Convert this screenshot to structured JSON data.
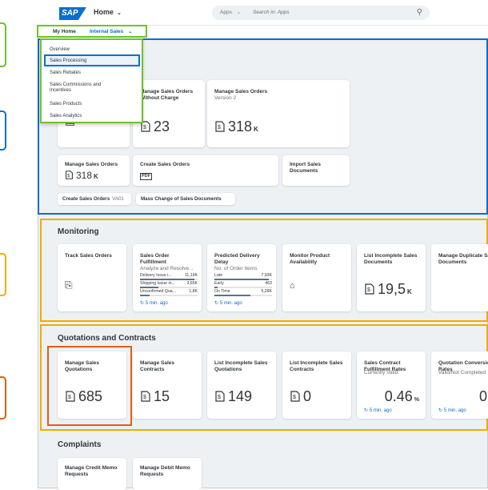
{
  "shell": {
    "logo_text": "SAP",
    "home_label": "Home",
    "search_scope": "Apps",
    "search_placeholder": "Search in: Apps"
  },
  "tabs": {
    "my_home": "My Home",
    "internal_sales": "Internal Sales"
  },
  "dropdown": {
    "items": [
      "Overview",
      "Sales Processing",
      "Sales Rebates",
      "Sales Commissions and Incentives",
      "Sales Products",
      "Sales Analytics"
    ],
    "selected_index": 1
  },
  "sales_processing": {
    "tiles": [
      {
        "title": "Manage Sales Orders Without Charge",
        "value": "23"
      },
      {
        "title": "Manage Sales Orders",
        "subtitle": "Version 2",
        "value": "318",
        "unit": "K"
      },
      {
        "title": "Manage Sales Orders",
        "value": "318",
        "unit": "K"
      },
      {
        "title": "Create Sales Orders",
        "icon_label": "PDF"
      },
      {
        "title": "Import Sales Documents"
      }
    ],
    "links": [
      {
        "label": "Create Sales Orders",
        "code": "VA01"
      },
      {
        "label": "Mass Change of Sales Documents"
      }
    ]
  },
  "monitoring": {
    "title": "Monitoring",
    "tiles": [
      {
        "title": "Track Sales Orders"
      },
      {
        "title": "Sales Order Fulfillment",
        "subtitle": "Analyze and Resolve...",
        "bars": [
          {
            "label": "Delivery Issue i...",
            "value": "11,19K",
            "fraction": 0.95
          },
          {
            "label": "Shipping Issue in...",
            "value": "3,65K",
            "fraction": 0.32
          },
          {
            "label": "Unconfirmed Qua...",
            "value": "1,8K",
            "fraction": 0.16
          }
        ],
        "refresh": "5 min. ago"
      },
      {
        "title": "Predicted Delivery Delay",
        "subtitle": "No. of Order Items",
        "bars": [
          {
            "label": "Late",
            "value": "7,93K",
            "fraction": 0.95
          },
          {
            "label": "Early",
            "value": "463",
            "fraction": 0.06
          },
          {
            "label": "On Time",
            "value": "5,28K",
            "fraction": 0.63
          }
        ],
        "refresh": "5 min. ago"
      },
      {
        "title": "Monitor Product Availability"
      },
      {
        "title": "List Incomplete Sales Documents",
        "value": "19,5",
        "unit": "K"
      },
      {
        "title": "Manage Duplicate Sales Documents"
      }
    ]
  },
  "quotations": {
    "title": "Quotations and Contracts",
    "tiles": [
      {
        "title": "Manage Sales Quotations",
        "value": "685"
      },
      {
        "title": "Manage Sales Contracts",
        "value": "15"
      },
      {
        "title": "List Incomplete Sales Quotations",
        "value": "149"
      },
      {
        "title": "List Incomplete Sales Contracts",
        "value": "0"
      },
      {
        "title": "Sales Contract Fulfillment Rates",
        "subtitle": "Currently Valid",
        "value": "0.46",
        "unit": "%",
        "refresh": "5 min. ago"
      },
      {
        "title": "Quotation Conversion Rates",
        "subtitle": "Valid/Not Completed",
        "value": "0",
        "refresh": "5 min. ago"
      }
    ]
  },
  "complaints": {
    "title": "Complaints",
    "tiles": [
      {
        "title": "Manage Credit Memo Requests"
      },
      {
        "title": "Manage Debit Memo Requests"
      }
    ]
  },
  "colors": {
    "brand_blue": "#0a6ed1",
    "highlight_green": "#6fc22c",
    "highlight_orange": "#f0ab00",
    "highlight_red": "#e05f12",
    "bar_fill": "#5b738b"
  }
}
